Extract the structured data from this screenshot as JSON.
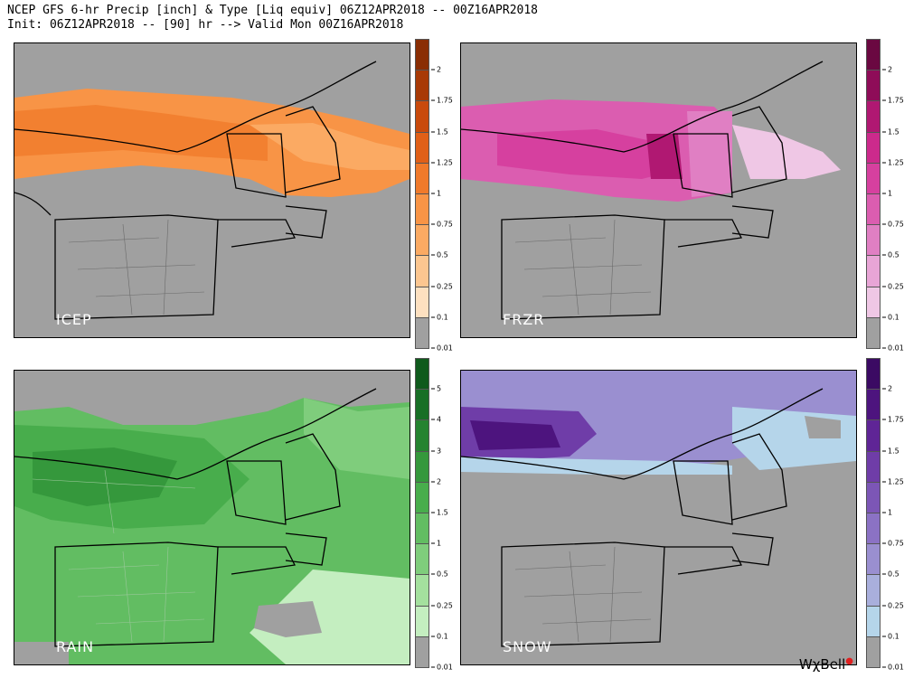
{
  "header": {
    "line1": "NCEP GFS 6-hr Precip [inch] & Type [Liq equiv] 06Z12APR2018 -- 00Z16APR2018",
    "line2": "Init: 06Z12APR2018 -- [90] hr --> Valid Mon 00Z16APR2018"
  },
  "panels": [
    {
      "id": "icep",
      "label": "ICEP",
      "colors": [
        "#fde0c0",
        "#fcc690",
        "#fbaa63",
        "#f89446",
        "#f07a2b",
        "#e06018",
        "#c94a0c",
        "#a83a06",
        "#8a2e04"
      ]
    },
    {
      "id": "frzr",
      "label": "FRZR",
      "colors": [
        "#efc7e5",
        "#e8a5d6",
        "#e07fc3",
        "#db5db0",
        "#d6409f",
        "#cc2a8c",
        "#b01872",
        "#8e0c58",
        "#6a0841"
      ]
    },
    {
      "id": "rain",
      "label": "RAIN",
      "colors": [
        "#c4eec0",
        "#a4e09e",
        "#7fcd7c",
        "#62bd62",
        "#48ad4c",
        "#35983c",
        "#258330",
        "#186f26",
        "#0f5a1c"
      ]
    },
    {
      "id": "snow",
      "label": "SNOW",
      "colors": [
        "#b5d5ea",
        "#a9afdc",
        "#9a8fd0",
        "#8b72c4",
        "#7c56b6",
        "#6f3da8",
        "#5f2596",
        "#4d147e",
        "#3b0a63"
      ]
    }
  ],
  "colorbars": {
    "standard_ticks": [
      "2",
      "1.75",
      "1.5",
      "1.25",
      "1",
      "0.75",
      "0.5",
      "0.25",
      "0.1",
      "0.01"
    ],
    "rain_ticks": [
      "5",
      "4",
      "3",
      "2",
      "1.5",
      "1",
      "0.5",
      "0.25",
      "0.1",
      "0.01"
    ]
  },
  "logo": {
    "text": "WχBell",
    "dot": "●"
  },
  "colors": {
    "no_precip": "#a0a0a0",
    "land_lines": "#505050",
    "borders": "#000000"
  }
}
